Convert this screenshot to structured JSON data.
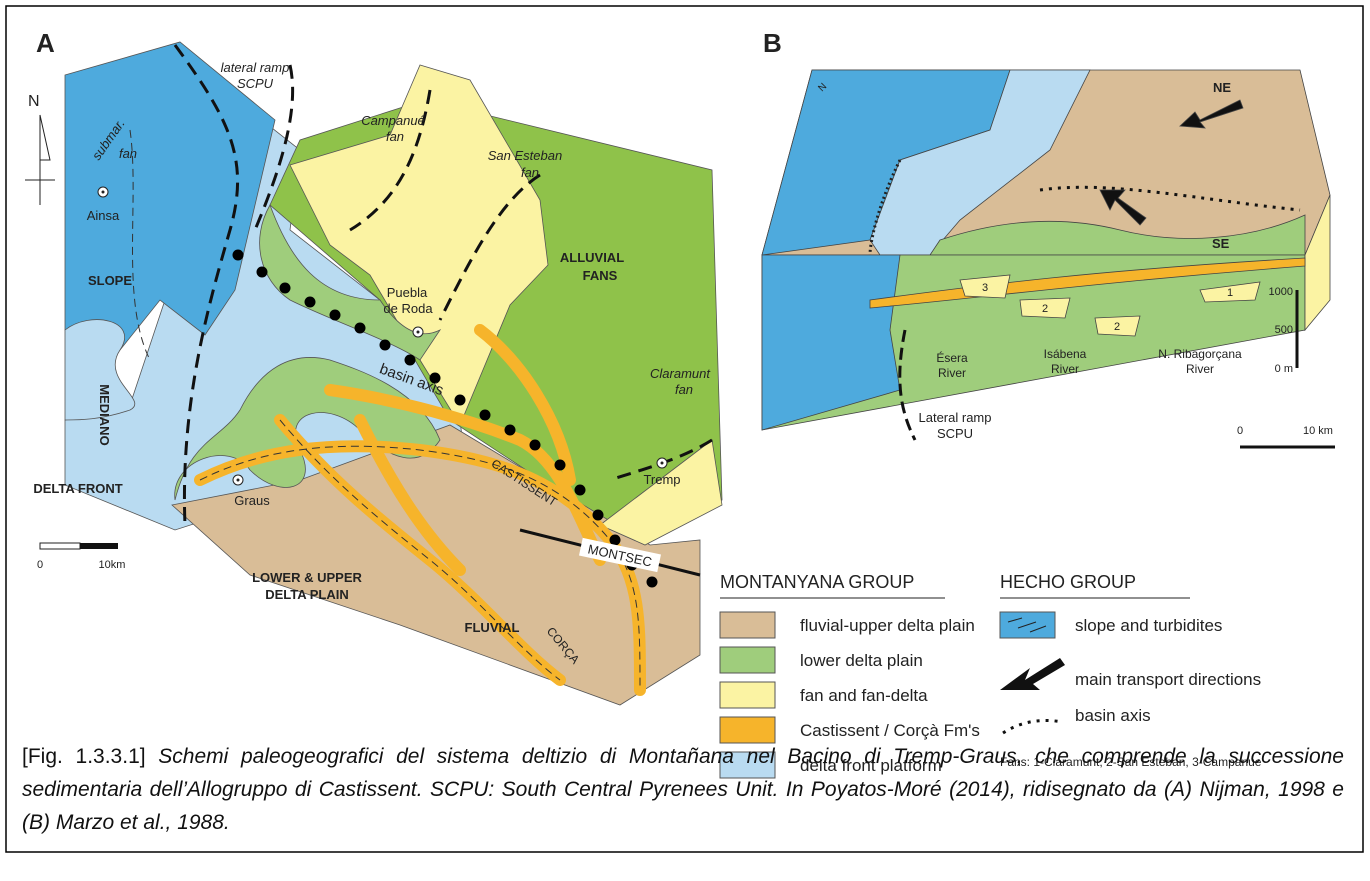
{
  "panel_a": {
    "letter": "A",
    "north": "N",
    "lateral_ramp": [
      "lateral ramp",
      "SCPU"
    ],
    "submarine_fan": [
      "submar.",
      "fan"
    ],
    "ainsa": "Ainsa",
    "slope": "SLOPE",
    "mediano": "MEDIANO",
    "delta_front": "DELTA FRONT",
    "campanue_fan": [
      "Campanué",
      "fan"
    ],
    "san_esteban_fan": [
      "San Esteban",
      "fan"
    ],
    "alluvial_fans": [
      "ALLUVIAL",
      "FANS"
    ],
    "puebla_de_roda": [
      "Puebla",
      "de Roda"
    ],
    "basin_axis": "basin axis",
    "claramunt_fan": [
      "Claramunt",
      "fan"
    ],
    "castissent": "CASTISSENT",
    "graus": "Graus",
    "tremp": "Tremp",
    "montsec": "MONTSEC",
    "delta_plain": [
      "LOWER & UPPER",
      "DELTA PLAIN"
    ],
    "fluvial": "FLUVIAL",
    "corca": "CORÇA",
    "scale": [
      "0",
      "10km"
    ]
  },
  "panel_b": {
    "letter": "B",
    "north": "N",
    "ne": "NE",
    "se": "SE",
    "fan_numbers": [
      "3",
      "2",
      "2",
      "1"
    ],
    "height_scale": [
      "1000",
      "500",
      "0 m"
    ],
    "rivers": [
      [
        "Ésera",
        "River"
      ],
      [
        "Isábena",
        "River"
      ],
      [
        "N. Ribagorçana",
        "River"
      ]
    ],
    "lateral_ramp": [
      "Lateral ramp",
      "SCPU"
    ],
    "scale": [
      "0",
      "10 km"
    ]
  },
  "legend": {
    "montanyana": {
      "title": "MONTANYANA GROUP",
      "items": [
        "fluvial-upper delta plain",
        "lower delta plain",
        "fan and fan-delta",
        "Castissent / Corçà Fm's",
        "delta front platform"
      ]
    },
    "hecho": {
      "title": "HECHO GROUP",
      "items": [
        "slope and turbidites",
        "main transport directions",
        "basin axis"
      ]
    },
    "fans_note": "Fans: 1-Claramunt, 2-San Esteban, 3-Campanue"
  },
  "caption": {
    "label": "[Fig. 1.3.3.1]",
    "text": "Schemi paleogeografici del sistema deltizio di Montañana nel Bacino di Tremp-Graus, che comprende la successione sedimentaria dell’Allogruppo di Castissent. SCPU: South Central Pyrenees Unit. In Poyatos-Moré (2014), ridisegnato da (A) Nijman, 1998 e (B) Marzo et al., 1988."
  }
}
